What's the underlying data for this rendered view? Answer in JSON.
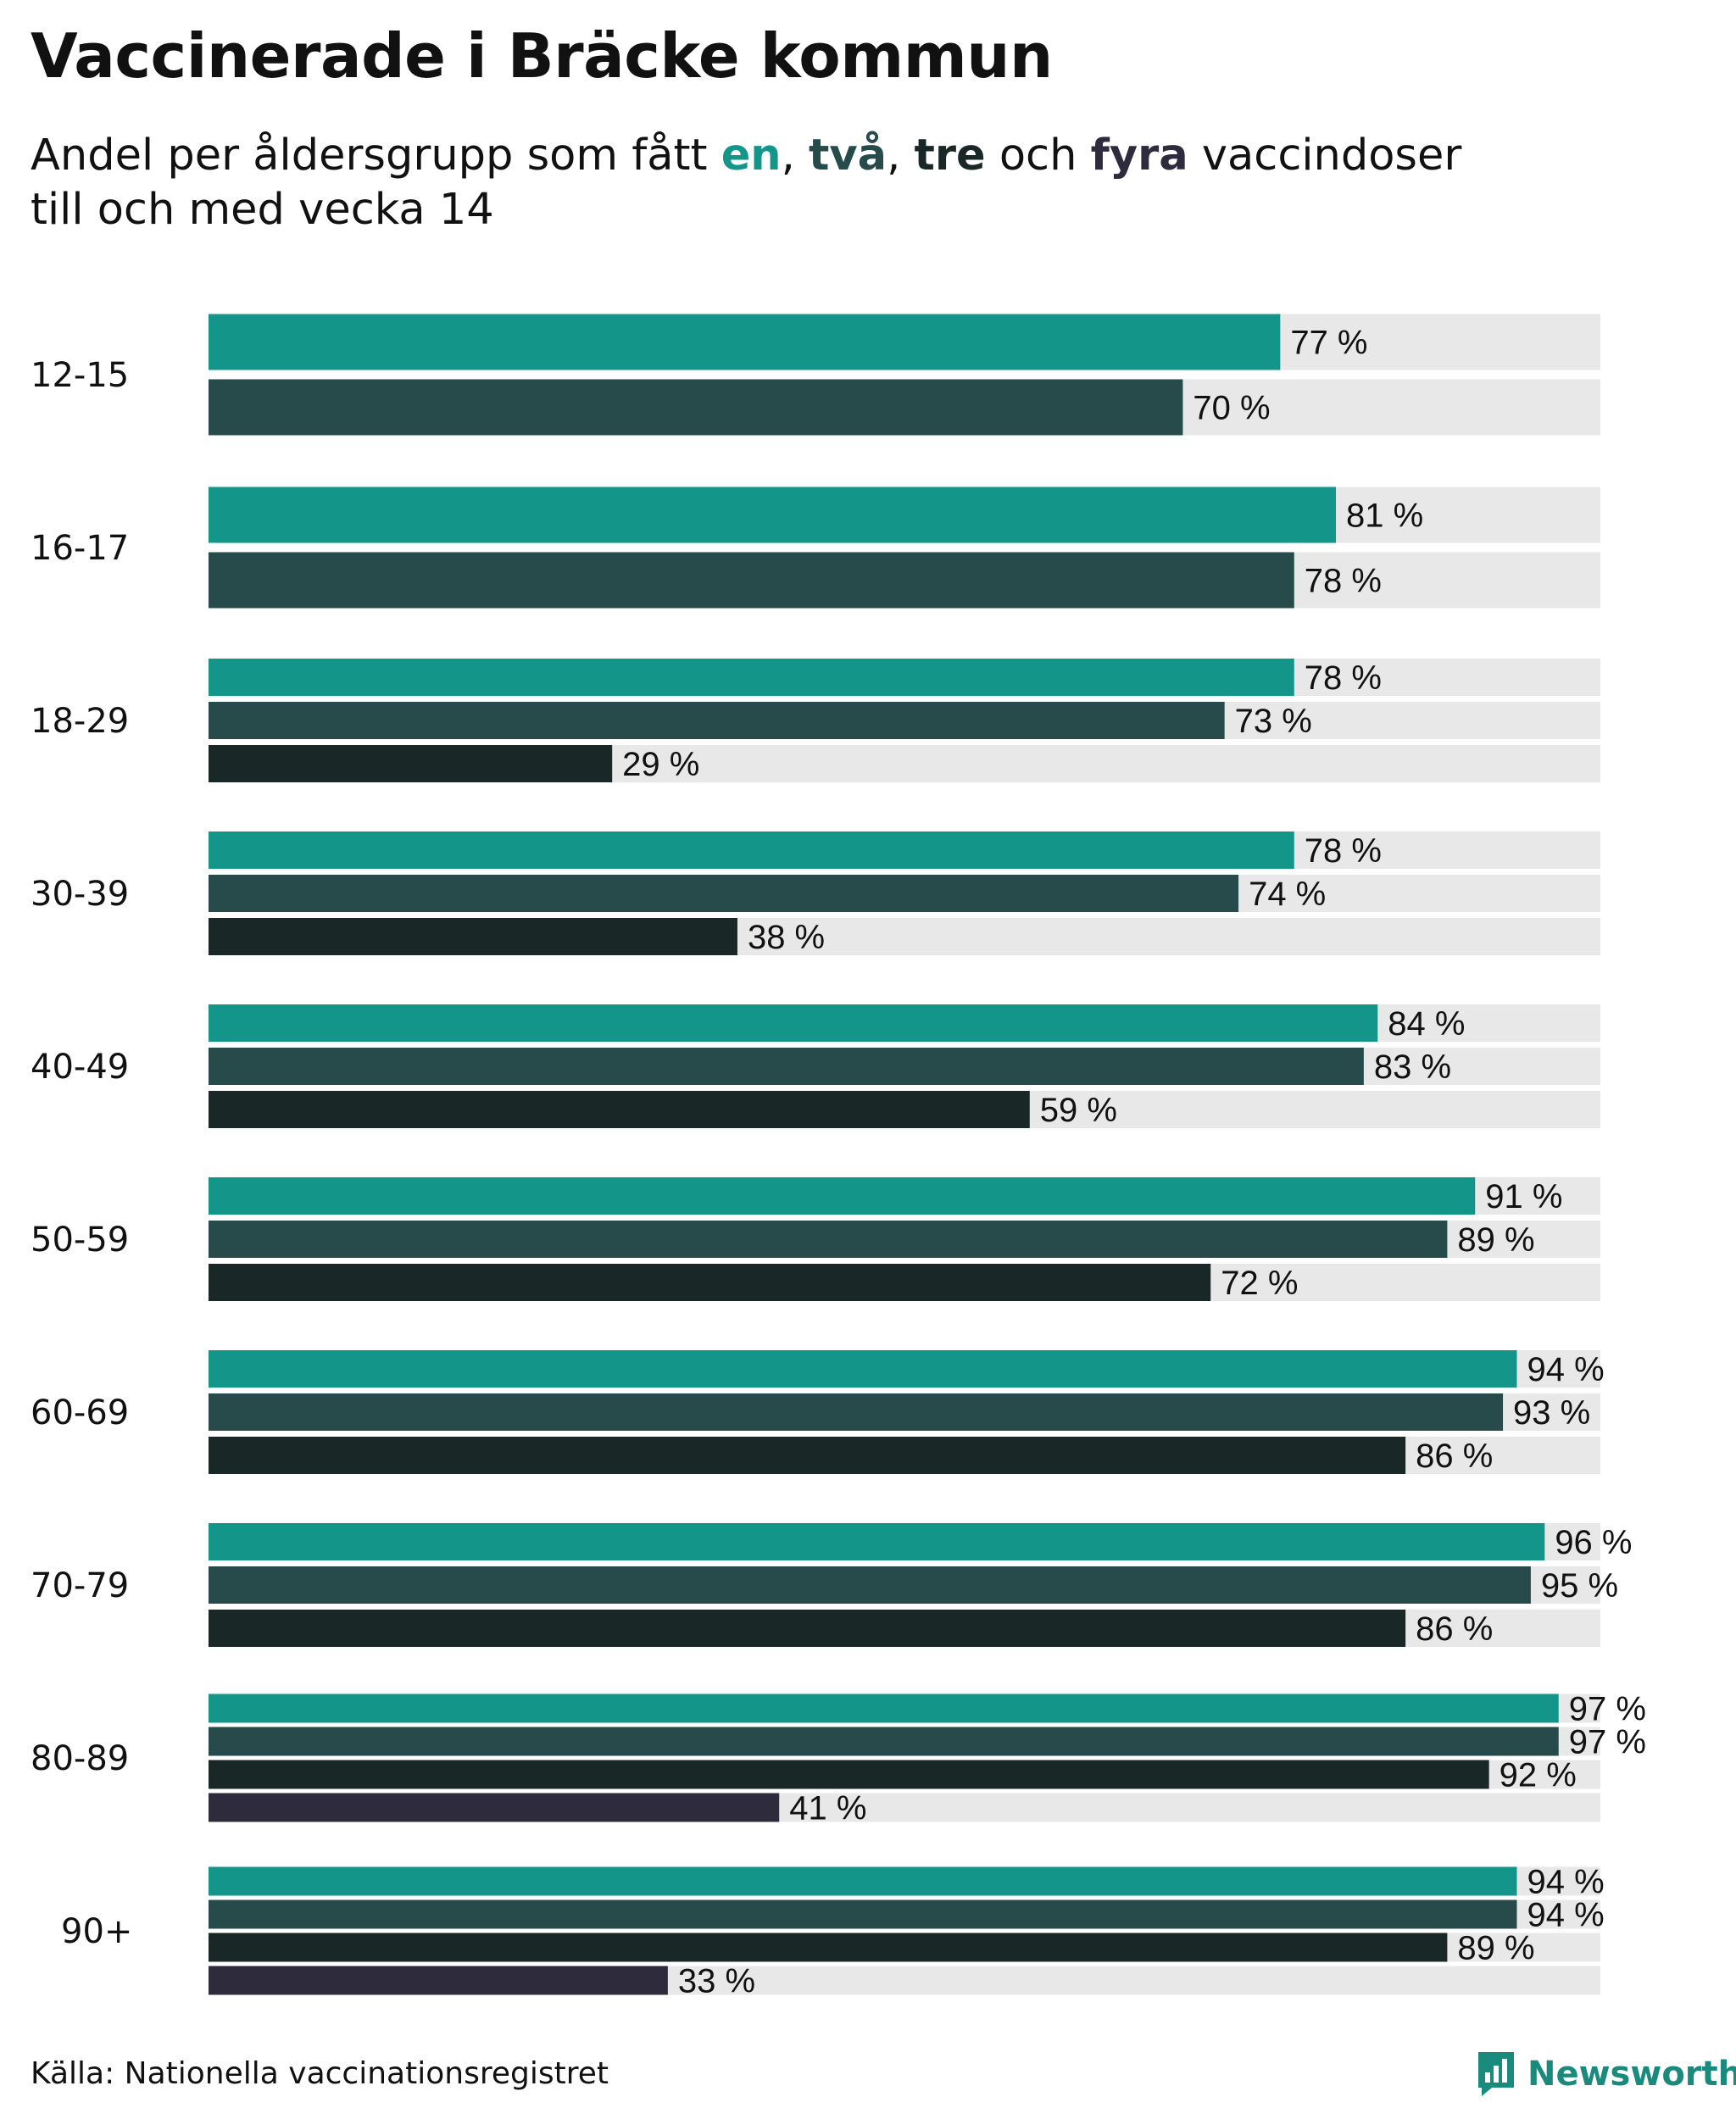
{
  "title": "Vaccinerade i Bräcke kommun",
  "subtitle": {
    "prefix": "Andel per åldersgrupp som fått ",
    "dose_words": [
      "en",
      "två",
      "tre",
      "fyra"
    ],
    "sep1": ", ",
    "sep2": ", ",
    "and_word": " och ",
    "suffix_line1": " vaccindoser",
    "line2": "till och med vecka 14"
  },
  "colors": {
    "dose1": "#13958a",
    "dose2": "#264b4a",
    "dose3": "#192827",
    "dose4": "#2e2c3c",
    "background_bar": "#e8e8e8",
    "text": "#111111"
  },
  "source": "Källa: Nationella vaccinationsregistret",
  "logo": {
    "text": "Newsworthy",
    "icon": "newsworthy-logo-icon"
  },
  "chart_data": {
    "type": "bar",
    "orientation": "horizontal",
    "categories": [
      "12-15",
      "16-17",
      "18-29",
      "30-39",
      "40-49",
      "50-59",
      "60-69",
      "70-79",
      "80-89",
      "90+"
    ],
    "series": [
      {
        "name": "en",
        "values": [
          77,
          81,
          78,
          78,
          84,
          91,
          94,
          96,
          97,
          94
        ]
      },
      {
        "name": "två",
        "values": [
          70,
          78,
          73,
          74,
          83,
          89,
          93,
          95,
          97,
          94
        ]
      },
      {
        "name": "tre",
        "values": [
          null,
          null,
          29,
          38,
          59,
          72,
          86,
          86,
          92,
          89
        ]
      },
      {
        "name": "fyra",
        "values": [
          null,
          null,
          null,
          null,
          null,
          null,
          null,
          null,
          41,
          33
        ]
      }
    ],
    "value_suffix": " %",
    "xlim": [
      0,
      100
    ],
    "title": "Vaccinerade i Bräcke kommun",
    "xlabel": "",
    "ylabel": ""
  }
}
